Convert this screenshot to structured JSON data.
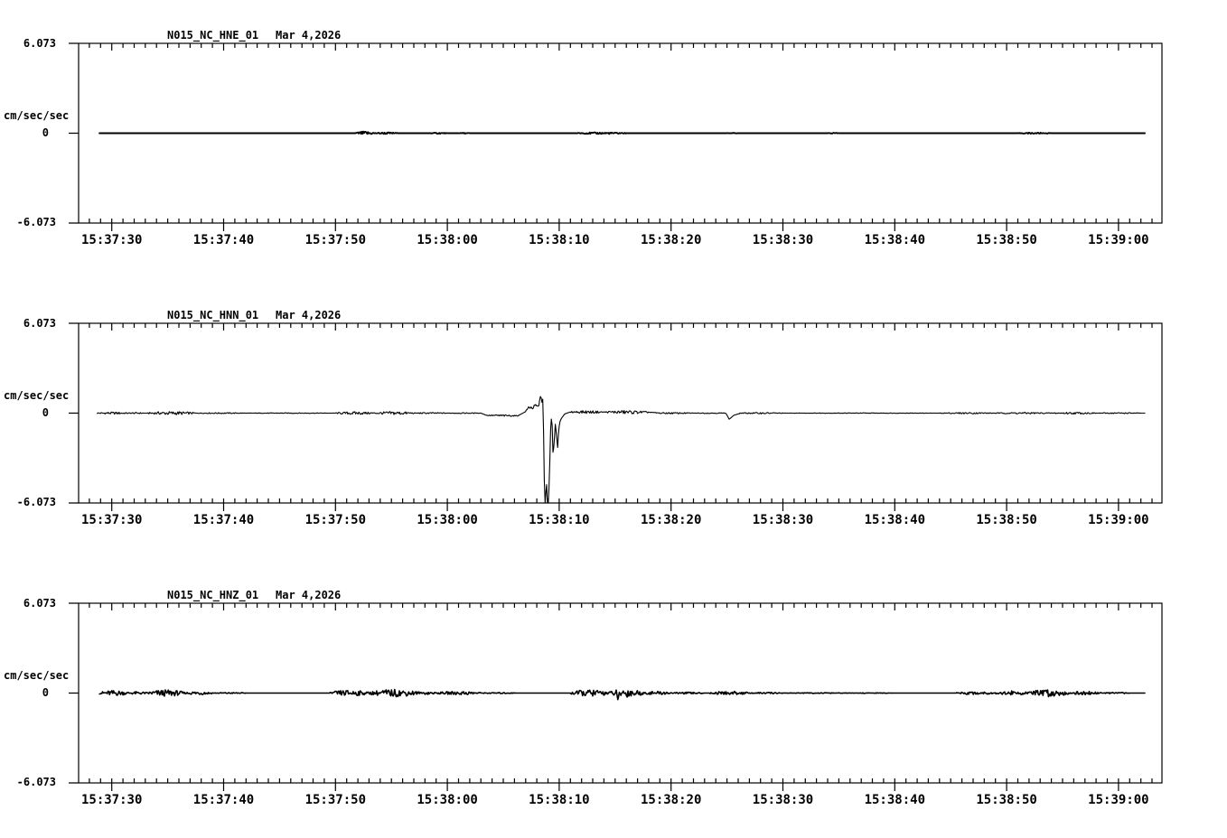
{
  "colors": {
    "trace": "#000000",
    "frame": "#000000",
    "background": "#ffffff"
  },
  "y_axis": {
    "top_label": "6.073",
    "zero_label": "0",
    "bottom_label": "-6.073",
    "unit": "cm/sec/sec",
    "ymin": -6.073,
    "ymax": 6.073
  },
  "x_axis": {
    "labels": [
      "15:37:30",
      "15:37:40",
      "15:37:50",
      "15:38:00",
      "15:38:10",
      "15:38:20",
      "15:38:30",
      "15:38:40",
      "15:38:50",
      "15:39:00"
    ],
    "major_step_sec": 10,
    "minor_step_sec": 1
  },
  "panels": [
    {
      "title": "N015_NC_HNE_01",
      "date": "Mar 4,2026"
    },
    {
      "title": "N015_NC_HNN_01",
      "date": "Mar 4,2026"
    },
    {
      "title": "N015_NC_HNZ_01",
      "date": "Mar 4,2026"
    }
  ],
  "chart_data": [
    {
      "type": "line",
      "name": "N015_NC_HNE_01",
      "title": "N015_NC_HNE_01  Mar 4,2026",
      "ylabel": "cm/sec/sec",
      "ylim": [
        -6.073,
        6.073
      ],
      "x_start_label": "15:37:30",
      "x_end_label": "15:39:00",
      "t_start": -1.1,
      "t_end": 92.4,
      "stroke_width": 1.9,
      "breakpoints": [
        [
          -1.1,
          0
        ],
        [
          92.4,
          0
        ]
      ],
      "noise_bursts": [
        [
          21.8,
          23.5,
          0.12
        ],
        [
          23.5,
          25.5,
          0.06
        ],
        [
          28.5,
          30,
          0.04
        ],
        [
          31,
          32,
          0.03
        ],
        [
          41.5,
          46,
          0.06
        ],
        [
          55,
          56,
          0.03
        ],
        [
          64,
          65,
          0.03
        ],
        [
          81,
          84,
          0.04
        ]
      ]
    },
    {
      "type": "line",
      "name": "N015_NC_HNN_01",
      "title": "N015_NC_HNN_01  Mar 4,2026",
      "ylabel": "cm/sec/sec",
      "ylim": [
        -6.073,
        6.073
      ],
      "x_start_label": "15:37:30",
      "x_end_label": "15:39:00",
      "t_start": -1.3,
      "t_end": 92.4,
      "stroke_width": 1.1,
      "breakpoints": [
        [
          -1.3,
          0
        ],
        [
          33,
          0
        ],
        [
          33.5,
          -0.15
        ],
        [
          36.3,
          -0.18
        ],
        [
          37.0,
          0.1
        ],
        [
          37.3,
          0.42
        ],
        [
          37.6,
          0.35
        ],
        [
          37.9,
          0.5
        ],
        [
          38.15,
          0.42
        ],
        [
          38.35,
          1.25
        ],
        [
          38.45,
          0.7
        ],
        [
          38.55,
          1.0
        ],
        [
          38.65,
          -3.5
        ],
        [
          38.7,
          -6.073
        ],
        [
          38.78,
          -6.073
        ],
        [
          38.85,
          -4.3
        ],
        [
          38.95,
          -6.073
        ],
        [
          39.05,
          -6.073
        ],
        [
          39.15,
          -3.6
        ],
        [
          39.25,
          -0.5
        ],
        [
          39.35,
          -0.3
        ],
        [
          39.45,
          -2.9
        ],
        [
          39.55,
          -2.0
        ],
        [
          39.65,
          -0.75
        ],
        [
          39.75,
          -1.35
        ],
        [
          39.85,
          -2.45
        ],
        [
          39.95,
          -1.2
        ],
        [
          40.05,
          -0.6
        ],
        [
          40.2,
          -0.35
        ],
        [
          40.5,
          -0.05
        ],
        [
          41,
          0.08
        ],
        [
          48,
          0.06
        ],
        [
          49,
          0
        ],
        [
          54.9,
          0
        ],
        [
          55.2,
          -0.42
        ],
        [
          55.6,
          -0.15
        ],
        [
          56.2,
          0
        ],
        [
          92.4,
          0
        ]
      ],
      "noise_bursts": [
        [
          -1.3,
          1.5,
          0.08
        ],
        [
          1.5,
          3,
          0.05
        ],
        [
          3.2,
          7.5,
          0.12
        ],
        [
          7.5,
          12,
          0.04
        ],
        [
          12,
          20,
          0.025
        ],
        [
          20,
          23.5,
          0.1
        ],
        [
          23.5,
          27,
          0.12
        ],
        [
          27,
          30,
          0.05
        ],
        [
          30,
          33,
          0.03
        ],
        [
          33.5,
          36.3,
          0.06
        ],
        [
          37.0,
          38.3,
          0.12
        ],
        [
          41,
          44,
          0.1
        ],
        [
          44,
          48,
          0.12
        ],
        [
          48,
          52,
          0.05
        ],
        [
          52,
          55,
          0.03
        ],
        [
          56,
          60,
          0.05
        ],
        [
          60,
          74,
          0.02
        ],
        [
          74,
          79,
          0.05
        ],
        [
          79,
          84,
          0.06
        ],
        [
          84,
          88,
          0.07
        ],
        [
          88,
          92,
          0.04
        ]
      ]
    },
    {
      "type": "line",
      "name": "N015_NC_HNZ_01",
      "title": "N015_NC_HNZ_01  Mar 4,2026",
      "ylabel": "cm/sec/sec",
      "ylim": [
        -6.073,
        6.073
      ],
      "x_start_label": "15:37:30",
      "x_end_label": "15:39:00",
      "t_start": -1.1,
      "t_end": 92.4,
      "stroke_width": 1.6,
      "breakpoints": [
        [
          -1.1,
          0
        ],
        [
          45.1,
          0
        ],
        [
          45.25,
          -0.55
        ],
        [
          45.4,
          0
        ],
        [
          92.4,
          0
        ]
      ],
      "noise_bursts": [
        [
          -1.1,
          1.5,
          0.18
        ],
        [
          1.5,
          3.2,
          0.1
        ],
        [
          3.2,
          6.5,
          0.22
        ],
        [
          6.5,
          9,
          0.12
        ],
        [
          9,
          12,
          0.04
        ],
        [
          19.5,
          23,
          0.2
        ],
        [
          23,
          27.5,
          0.25
        ],
        [
          27.5,
          29,
          0.1
        ],
        [
          29,
          33,
          0.12
        ],
        [
          33,
          36,
          0.04
        ],
        [
          41,
          44.5,
          0.22
        ],
        [
          44.5,
          47.5,
          0.28
        ],
        [
          47.5,
          50,
          0.12
        ],
        [
          50,
          53,
          0.06
        ],
        [
          53.5,
          57,
          0.12
        ],
        [
          57,
          60,
          0.05
        ],
        [
          60,
          66,
          0.025
        ],
        [
          66,
          70,
          0.02
        ],
        [
          75.5,
          79,
          0.1
        ],
        [
          79,
          82,
          0.15
        ],
        [
          82,
          85.5,
          0.25
        ],
        [
          85.5,
          88.5,
          0.12
        ],
        [
          88.5,
          91,
          0.05
        ]
      ]
    }
  ]
}
